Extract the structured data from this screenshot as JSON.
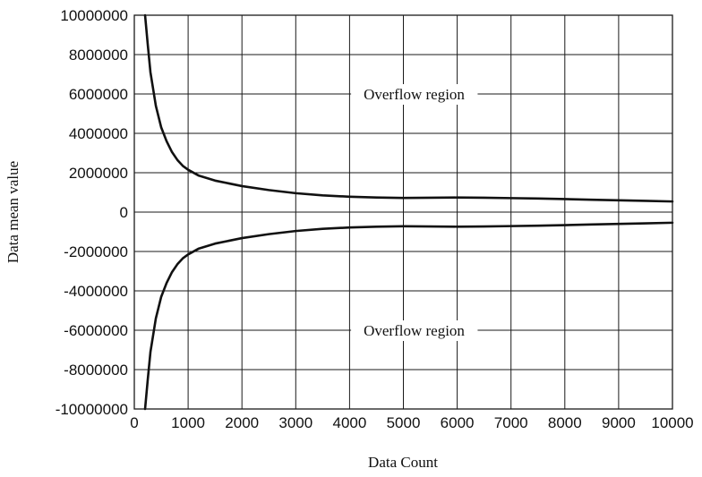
{
  "chart_data": {
    "type": "line",
    "title": "",
    "xlabel": "Data Count",
    "ylabel": "Data mean value",
    "xlim": [
      0,
      10000
    ],
    "ylim": [
      -10000000,
      10000000
    ],
    "x_ticks": [
      0,
      1000,
      2000,
      3000,
      4000,
      5000,
      6000,
      7000,
      8000,
      9000,
      10000
    ],
    "y_ticks": [
      10000000,
      8000000,
      6000000,
      4000000,
      2000000,
      0,
      -2000000,
      -4000000,
      -6000000,
      -8000000,
      -10000000
    ],
    "x_tick_labels": [
      "0",
      "1000",
      "2000",
      "3000",
      "4000",
      "5000",
      "6000",
      "7000",
      "8000",
      "9000",
      "10000"
    ],
    "y_tick_labels": [
      "10000000",
      "8000000",
      "6000000",
      "4000000",
      "2000000",
      "0",
      "-2000000",
      "-4000000",
      "-6000000",
      "-8000000",
      "-10000000"
    ],
    "grid": true,
    "legend": false,
    "annotations": [
      {
        "text": "Overflow region",
        "x": 5200,
        "y": 6000000
      },
      {
        "text": "Overflow region",
        "x": 5200,
        "y": -6000000
      }
    ],
    "series": [
      {
        "x": [
          200,
          250,
          300,
          400,
          500,
          600,
          700,
          800,
          900,
          1000,
          1200,
          1500,
          2000,
          2500,
          3000,
          3500,
          4000,
          4500,
          5000,
          5500,
          6000,
          6500,
          7000,
          7500,
          8000,
          8500,
          9000,
          9500,
          10000
        ],
        "y": [
          10000000,
          8500000,
          7100000,
          5400000,
          4300000,
          3600000,
          3050000,
          2650000,
          2350000,
          2150000,
          1850000,
          1600000,
          1320000,
          1120000,
          960000,
          850000,
          780000,
          740000,
          720000,
          730000,
          740000,
          730000,
          710000,
          690000,
          660000,
          630000,
          600000,
          570000,
          540000
        ]
      },
      {
        "x": [
          200,
          250,
          300,
          400,
          500,
          600,
          700,
          800,
          900,
          1000,
          1200,
          1500,
          2000,
          2500,
          3000,
          3500,
          4000,
          4500,
          5000,
          5500,
          6000,
          6500,
          7000,
          7500,
          8000,
          8500,
          9000,
          9500,
          10000
        ],
        "y": [
          -10000000,
          -8500000,
          -7100000,
          -5400000,
          -4300000,
          -3600000,
          -3050000,
          -2650000,
          -2350000,
          -2150000,
          -1850000,
          -1600000,
          -1320000,
          -1120000,
          -960000,
          -850000,
          -780000,
          -740000,
          -720000,
          -730000,
          -740000,
          -730000,
          -710000,
          -690000,
          -660000,
          -630000,
          -600000,
          -570000,
          -540000
        ]
      }
    ]
  }
}
